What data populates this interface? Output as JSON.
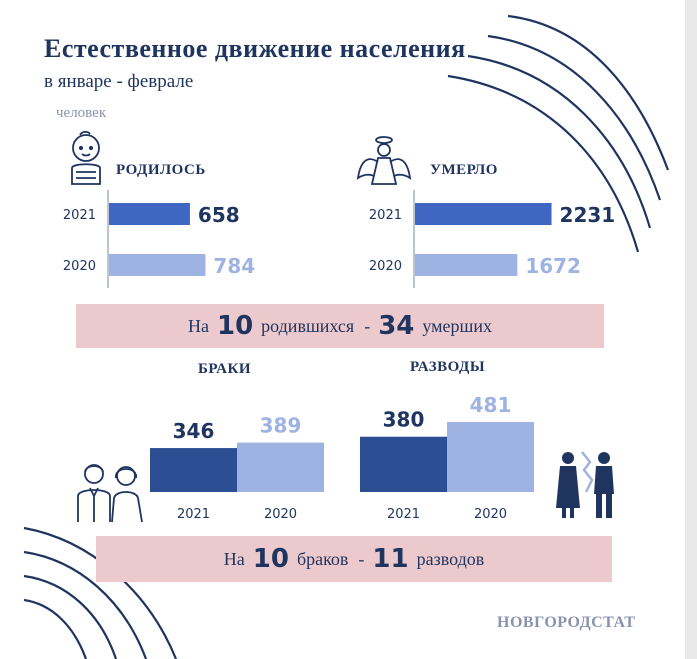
{
  "title": "Естественное движение населения",
  "subtitle": "в январе - феврале",
  "unit": "человек",
  "source": "НОВГОРОДСТАТ",
  "colors": {
    "current": "#3f67c2",
    "previous": "#9fb3e3",
    "dark": "#2c4f93",
    "pink": "#ecc9cd",
    "text": "#1f3560"
  },
  "icons": {
    "births": "baby-icon",
    "deaths": "angel-icon",
    "marriages": "couple-icon",
    "divorces": "separated-couple-icon"
  },
  "births_heading": "РОДИЛОСЬ",
  "deaths_heading": "УМЕРЛО",
  "marriages_heading": "БРАКИ",
  "divorces_heading": "РАЗВОДЫ",
  "ratio1": {
    "prefix": "На",
    "a": "10",
    "mid": "родившихся",
    "dash": "-",
    "b": "34",
    "suffix": "умерших"
  },
  "ratio2": {
    "prefix": "На",
    "a": "10",
    "mid": "браков",
    "dash": "-",
    "b": "11",
    "suffix": "разводов"
  },
  "chart_data": [
    {
      "type": "bar",
      "orientation": "horizontal",
      "title": "РОДИЛОСЬ",
      "categories": [
        "2021",
        "2020"
      ],
      "values": [
        658,
        784
      ]
    },
    {
      "type": "bar",
      "orientation": "horizontal",
      "title": "УМЕРЛО",
      "categories": [
        "2021",
        "2020"
      ],
      "values": [
        2231,
        1672
      ]
    },
    {
      "type": "bar",
      "orientation": "vertical",
      "title": "БРАКИ",
      "categories": [
        "2021",
        "2020"
      ],
      "values": [
        346,
        389
      ]
    },
    {
      "type": "bar",
      "orientation": "vertical",
      "title": "РАЗВОДЫ",
      "categories": [
        "2021",
        "2020"
      ],
      "values": [
        380,
        481
      ]
    }
  ]
}
